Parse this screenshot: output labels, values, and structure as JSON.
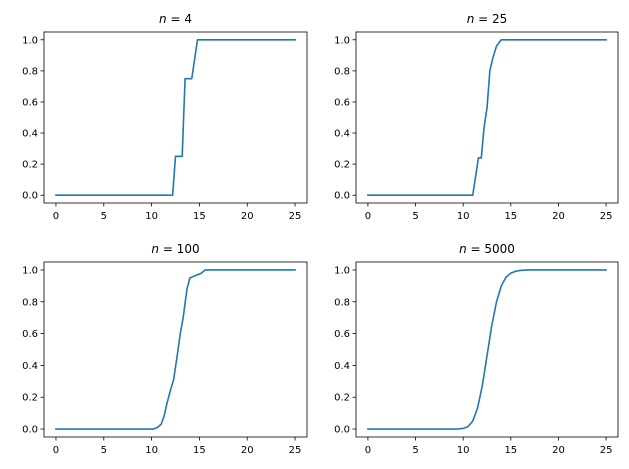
{
  "colors": {
    "series": "#1f77b4",
    "axes": "#000000",
    "background": "#ffffff"
  },
  "chart_data": [
    {
      "type": "line",
      "title": "n = 4",
      "title_var": "n",
      "title_rest": " = 4",
      "xlim": [
        -1.25,
        26.25
      ],
      "ylim": [
        -0.05,
        1.05
      ],
      "xticks": [
        0,
        5,
        10,
        15,
        20,
        25
      ],
      "yticks": [
        0.0,
        0.2,
        0.4,
        0.6,
        0.8,
        1.0
      ],
      "xtick_labels": [
        "0",
        "5",
        "10",
        "15",
        "20",
        "25"
      ],
      "ytick_labels": [
        "0.0",
        "0.2",
        "0.4",
        "0.6",
        "0.8",
        "1.0"
      ],
      "series": [
        {
          "x": [
            0,
            12.2,
            12.5,
            13.2,
            13.5,
            14.2,
            14.8,
            25
          ],
          "y": [
            0,
            0,
            0.25,
            0.25,
            0.75,
            0.75,
            1.0,
            1.0
          ]
        }
      ]
    },
    {
      "type": "line",
      "title": "n = 25",
      "title_var": "n",
      "title_rest": " = 25",
      "xlim": [
        -1.25,
        26.25
      ],
      "ylim": [
        -0.05,
        1.05
      ],
      "xticks": [
        0,
        5,
        10,
        15,
        20,
        25
      ],
      "yticks": [
        0.0,
        0.2,
        0.4,
        0.6,
        0.8,
        1.0
      ],
      "xtick_labels": [
        "0",
        "5",
        "10",
        "15",
        "20",
        "25"
      ],
      "ytick_labels": [
        "0.0",
        "0.2",
        "0.4",
        "0.6",
        "0.8",
        "1.0"
      ],
      "series": [
        {
          "x": [
            0,
            11.0,
            11.3,
            11.6,
            11.9,
            12.2,
            12.5,
            12.8,
            13.1,
            13.5,
            14.0,
            14.3,
            25
          ],
          "y": [
            0,
            0,
            0.12,
            0.24,
            0.24,
            0.44,
            0.56,
            0.8,
            0.88,
            0.96,
            1.0,
            1.0,
            1.0
          ]
        }
      ]
    },
    {
      "type": "line",
      "title": "n = 100",
      "title_var": "n",
      "title_rest": " = 100",
      "xlim": [
        -1.25,
        26.25
      ],
      "ylim": [
        -0.05,
        1.05
      ],
      "xticks": [
        0,
        5,
        10,
        15,
        20,
        25
      ],
      "yticks": [
        0.0,
        0.2,
        0.4,
        0.6,
        0.8,
        1.0
      ],
      "xtick_labels": [
        "0",
        "5",
        "10",
        "15",
        "20",
        "25"
      ],
      "ytick_labels": [
        "0.0",
        "0.2",
        "0.4",
        "0.6",
        "0.8",
        "1.0"
      ],
      "series": [
        {
          "x": [
            0,
            10.2,
            10.6,
            11.0,
            11.3,
            11.6,
            12.0,
            12.3,
            12.7,
            13.0,
            13.3,
            13.7,
            14.0,
            14.4,
            14.8,
            15.2,
            15.6,
            16.0,
            25
          ],
          "y": [
            0,
            0,
            0.01,
            0.03,
            0.08,
            0.16,
            0.25,
            0.31,
            0.47,
            0.6,
            0.7,
            0.88,
            0.95,
            0.96,
            0.97,
            0.98,
            1.0,
            1.0,
            1.0
          ]
        }
      ]
    },
    {
      "type": "line",
      "title": "n = 5000",
      "title_var": "n",
      "title_rest": " = 5000",
      "xlim": [
        -1.25,
        26.25
      ],
      "ylim": [
        -0.05,
        1.05
      ],
      "xticks": [
        0,
        5,
        10,
        15,
        20,
        25
      ],
      "yticks": [
        0.0,
        0.2,
        0.4,
        0.6,
        0.8,
        1.0
      ],
      "xtick_labels": [
        "0",
        "5",
        "10",
        "15",
        "20",
        "25"
      ],
      "ytick_labels": [
        "0.0",
        "0.2",
        "0.4",
        "0.6",
        "0.8",
        "1.0"
      ],
      "series": [
        {
          "x": [
            0,
            9,
            9.5,
            10,
            10.5,
            11,
            11.5,
            12,
            12.5,
            13,
            13.5,
            14,
            14.5,
            15,
            15.5,
            16,
            16.5,
            17,
            18,
            25
          ],
          "y": [
            0,
            0,
            0.001,
            0.004,
            0.015,
            0.05,
            0.13,
            0.27,
            0.46,
            0.65,
            0.8,
            0.9,
            0.955,
            0.98,
            0.992,
            0.997,
            0.999,
            1.0,
            1.0,
            1.0
          ]
        }
      ]
    }
  ]
}
